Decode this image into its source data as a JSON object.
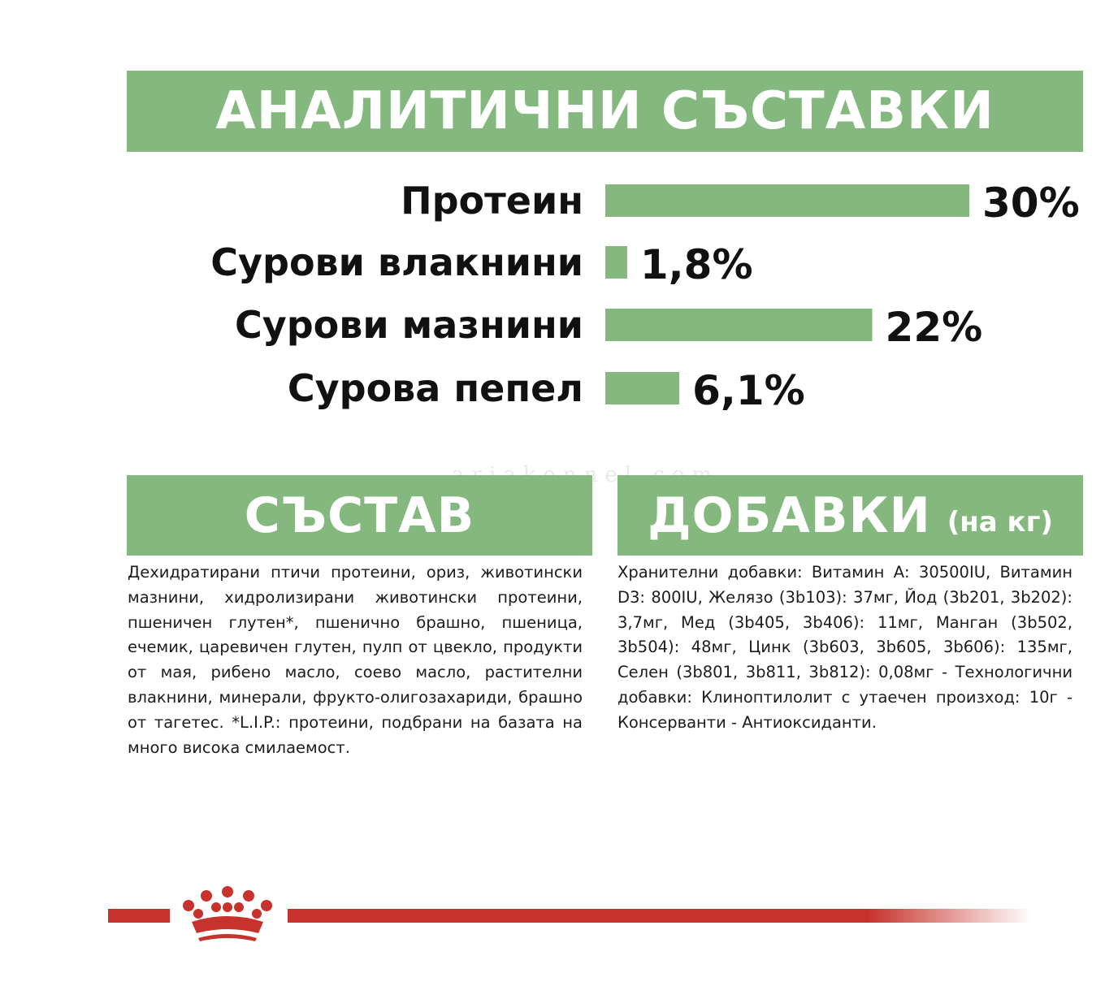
{
  "colors": {
    "accent_green": "#85b87e",
    "brand_red": "#c7332c",
    "text_dark": "#111111"
  },
  "header": {
    "title": "АНАЛИТИЧНИ СЪСТАВКИ"
  },
  "chart_data": {
    "type": "bar",
    "orientation": "horizontal",
    "title": "АНАЛИТИЧНИ СЪСТАВКИ",
    "categories": [
      "Протеин",
      "Сурови влакнини",
      "Сурови мазнини",
      "Сурова пепел"
    ],
    "values": [
      30,
      1.8,
      22,
      6.1
    ],
    "value_labels": [
      "30%",
      "1,8%",
      "22%",
      "6,1%"
    ],
    "unit": "%",
    "xlim": [
      0,
      30
    ],
    "grid": false,
    "legend": "none"
  },
  "composition": {
    "title": "СЪСТАВ",
    "text": "Дехидратирани птичи протеини, ориз, животински мазнини, хидролизирани животински протеини, пшеничен глутен*, пшенично брашно, пшеница, ечемик, царевичен глутен, пулп от цвекло, продукти от мая, рибено масло, соево масло, растителни влакнини, минерали, фрукто-олигозахариди, брашно от тагетес. *L.I.P.: протеини, подбрани на базата на много висока смилаемост."
  },
  "additives": {
    "title": "ДОБАВКИ",
    "subtitle": "(на кг)",
    "text": "Хранителни добавки: Витамин А: 30500IU, Витамин D3: 800IU, Желязо (3b103): 37мг, Йод (3b201, 3b202): 3,7мг, Мед (3b405, 3b406): 11мг, Манган (3b502, 3b504): 48мг, Цинк (3b603, 3b605, 3b606): 135мг, Селен (3b801, 3b811, 3b812): 0,08мг - Технологични добавки: Клиноптилолит с утаечен произход: 10г - Консерванти - Антиоксиданти."
  },
  "watermark": "ariakennel.com",
  "footer": {
    "logo_icon": "crown-icon"
  }
}
